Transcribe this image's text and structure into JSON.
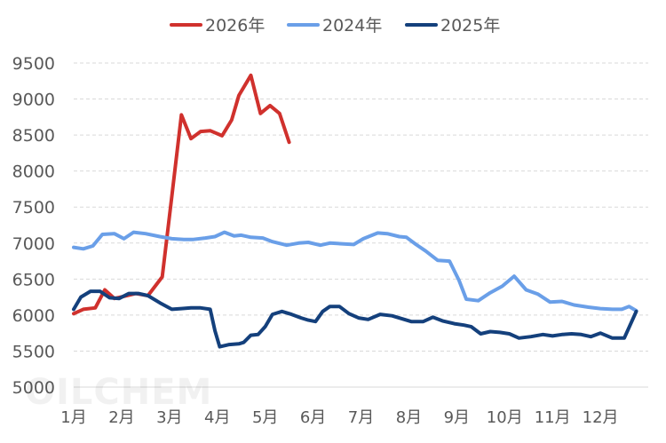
{
  "watermark": "OILCHEM",
  "chart_data": {
    "type": "line",
    "x_categories": [
      "1月",
      "2月",
      "3月",
      "4月",
      "5月",
      "6月",
      "7月",
      "8月",
      "9月",
      "10月",
      "11月",
      "12月"
    ],
    "ylim": [
      5000,
      9500
    ],
    "yticks": [
      5000,
      5500,
      6000,
      6500,
      7000,
      7500,
      8000,
      8500,
      9000,
      9500
    ],
    "grid": true,
    "legend_position": "top",
    "series": [
      {
        "name": "2026年",
        "color": "#d0312d",
        "x": [
          1.0,
          1.2,
          1.45,
          1.65,
          1.85,
          2.05,
          2.3,
          2.55,
          2.85,
          3.05,
          3.25,
          3.45,
          3.65,
          3.85,
          4.1,
          4.3,
          4.45,
          4.7,
          4.9,
          5.1,
          5.3,
          5.5
        ],
        "y": [
          6020,
          6080,
          6100,
          6350,
          6230,
          6260,
          6300,
          6270,
          6530,
          7650,
          8780,
          8450,
          8550,
          8560,
          8490,
          8710,
          9050,
          9330,
          8800,
          8910,
          8800,
          8400
        ]
      },
      {
        "name": "2024年",
        "color": "#6a9fe8",
        "x": [
          1.0,
          1.2,
          1.4,
          1.6,
          1.85,
          2.05,
          2.25,
          2.5,
          2.8,
          3.05,
          3.3,
          3.5,
          3.75,
          3.95,
          4.15,
          4.35,
          4.5,
          4.7,
          4.95,
          5.15,
          5.45,
          5.7,
          5.9,
          6.15,
          6.35,
          6.6,
          6.85,
          7.05,
          7.35,
          7.55,
          7.8,
          7.95,
          8.15,
          8.35,
          8.6,
          8.85,
          9.05,
          9.2,
          9.45,
          9.7,
          9.95,
          10.2,
          10.45,
          10.7,
          10.95,
          11.2,
          11.45,
          11.75,
          12.0,
          12.25,
          12.45,
          12.6,
          12.75
        ],
        "y": [
          6940,
          6920,
          6960,
          7120,
          7130,
          7060,
          7150,
          7130,
          7090,
          7060,
          7050,
          7050,
          7070,
          7090,
          7150,
          7100,
          7110,
          7080,
          7070,
          7020,
          6970,
          7000,
          7010,
          6970,
          7000,
          6990,
          6980,
          7060,
          7140,
          7130,
          7090,
          7080,
          6980,
          6890,
          6760,
          6750,
          6480,
          6220,
          6200,
          6310,
          6400,
          6540,
          6350,
          6290,
          6180,
          6190,
          6140,
          6110,
          6090,
          6080,
          6080,
          6120,
          6060
        ]
      },
      {
        "name": "2025年",
        "color": "#14407c",
        "x": [
          1.0,
          1.15,
          1.35,
          1.55,
          1.75,
          1.95,
          2.15,
          2.35,
          2.55,
          2.8,
          3.05,
          3.25,
          3.45,
          3.65,
          3.85,
          3.95,
          4.05,
          4.25,
          4.45,
          4.55,
          4.7,
          4.85,
          5.0,
          5.15,
          5.35,
          5.55,
          5.75,
          5.9,
          6.05,
          6.2,
          6.35,
          6.55,
          6.75,
          6.95,
          7.15,
          7.4,
          7.65,
          7.85,
          8.05,
          8.3,
          8.5,
          8.7,
          8.95,
          9.15,
          9.3,
          9.5,
          9.7,
          9.9,
          10.1,
          10.3,
          10.55,
          10.8,
          11.0,
          11.2,
          11.4,
          11.6,
          11.8,
          12.0,
          12.25,
          12.5,
          12.75
        ],
        "y": [
          6080,
          6250,
          6330,
          6330,
          6240,
          6230,
          6300,
          6300,
          6270,
          6170,
          6080,
          6090,
          6100,
          6100,
          6080,
          5780,
          5560,
          5590,
          5600,
          5620,
          5720,
          5730,
          5840,
          6010,
          6050,
          6010,
          5960,
          5930,
          5910,
          6050,
          6120,
          6120,
          6020,
          5960,
          5940,
          6010,
          5990,
          5950,
          5910,
          5910,
          5970,
          5920,
          5880,
          5860,
          5840,
          5740,
          5770,
          5760,
          5740,
          5680,
          5700,
          5730,
          5710,
          5730,
          5740,
          5730,
          5700,
          5750,
          5680,
          5680,
          6050
        ]
      }
    ],
    "legend_order": [
      0,
      1,
      2
    ]
  }
}
